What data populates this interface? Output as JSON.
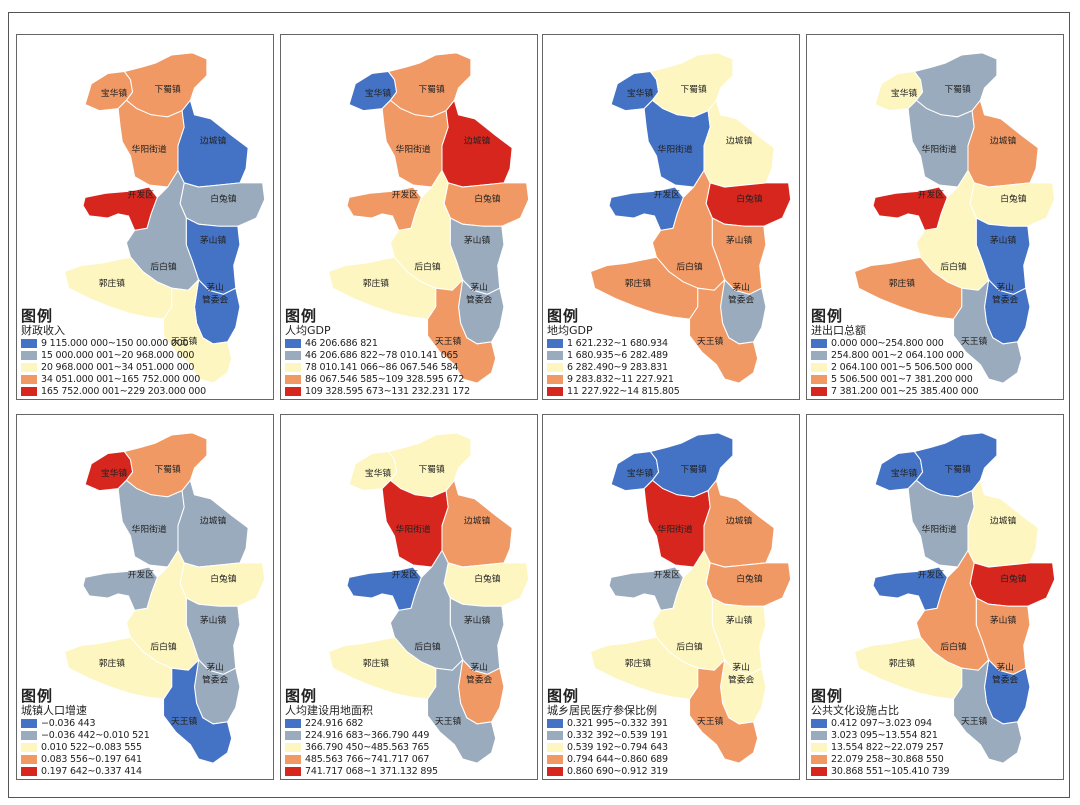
{
  "legend_heading": "图例",
  "towns": {
    "baohua": "宝华镇",
    "xiashu": "下蜀镇",
    "huayang": "华阳街道",
    "biancheng": "边城镇",
    "kaifa": "开发区",
    "baitu": "白兔镇",
    "maoshan": "茅山镇",
    "houbai": "后白镇",
    "guozhuang": "郭庄镇",
    "mscommittee_1": "茅山",
    "mscommittee_2": "管委会",
    "tianwang": "天王镇"
  },
  "colors": {
    "c1": "#4472c4",
    "c2": "#9aabbd",
    "c3": "#fdf6c0",
    "c4": "#f09965",
    "c5": "#d7261e"
  },
  "panels": [
    {
      "subtitle": "财政收入",
      "classes": [
        "9 115.000 000~150 00.000 000",
        "15 000.000 001~20 968.000 000",
        "20 968.000 001~34 051.000 000",
        "34 051.000 001~165 752.000 000",
        "165 752.000 001~229 203.000 000"
      ],
      "fills": {
        "baohua": "c4",
        "xiashu": "c4",
        "huayang": "c4",
        "biancheng": "c1",
        "kaifa": "c5",
        "baitu": "c2",
        "maoshan": "c1",
        "houbai": "c2",
        "guozhuang": "c3",
        "mscommittee": "c1",
        "tianwang": "c3"
      }
    },
    {
      "subtitle": "人均GDP",
      "classes": [
        "46 206.686 821",
        "46 206.686 822~78 010.141 065",
        "78 010.141 066~86 067.546 584",
        "86 067.546 585~109 328.595 672",
        "109 328.595 673~131 232.231 172"
      ],
      "fills": {
        "baohua": "c1",
        "xiashu": "c4",
        "huayang": "c4",
        "biancheng": "c5",
        "kaifa": "c4",
        "baitu": "c4",
        "maoshan": "c2",
        "houbai": "c3",
        "guozhuang": "c3",
        "mscommittee": "c2",
        "tianwang": "c4"
      }
    },
    {
      "subtitle": "地均GDP",
      "classes": [
        "1 621.232~1 680.934",
        "1 680.935~6 282.489",
        "6 282.490~9 283.831",
        "9 283.832~11 227.921",
        "11 227.922~14 815.805"
      ],
      "fills": {
        "baohua": "c1",
        "xiashu": "c3",
        "huayang": "c1",
        "biancheng": "c3",
        "kaifa": "c1",
        "baitu": "c5",
        "maoshan": "c4",
        "houbai": "c4",
        "guozhuang": "c4",
        "mscommittee": "c2",
        "tianwang": "c4"
      }
    },
    {
      "subtitle": "进出口总额",
      "classes": [
        "0.000 000~254.800 000",
        "254.800 001~2 064.100 000",
        "2 064.100 001~5 506.500 000",
        "5 506.500 001~7 381.200 000",
        "7 381.200 001~25 385.400 000"
      ],
      "fills": {
        "baohua": "c3",
        "xiashu": "c2",
        "huayang": "c2",
        "biancheng": "c4",
        "kaifa": "c5",
        "baitu": "c3",
        "maoshan": "c1",
        "houbai": "c3",
        "guozhuang": "c4",
        "mscommittee": "c1",
        "tianwang": "c2"
      }
    },
    {
      "subtitle": "城镇人口增速",
      "classes": [
        "−0.036 443",
        "−0.036 442~0.010 521",
        "0.010 522~0.083 555",
        "0.083 556~0.197 641",
        "0.197 642~0.337 414"
      ],
      "fills": {
        "baohua": "c5",
        "xiashu": "c4",
        "huayang": "c2",
        "biancheng": "c2",
        "kaifa": "c2",
        "baitu": "c3",
        "maoshan": "c2",
        "houbai": "c3",
        "guozhuang": "c3",
        "mscommittee": "c2",
        "tianwang": "c1"
      }
    },
    {
      "subtitle": "人均建设用地面积",
      "classes": [
        "224.916 682",
        "224.916 683~366.790 449",
        "366.790 450~485.563 765",
        "485.563 766~741.717 067",
        "741.717 068~1 371.132 895"
      ],
      "fills": {
        "baohua": "c3",
        "xiashu": "c3",
        "huayang": "c5",
        "biancheng": "c4",
        "kaifa": "c1",
        "baitu": "c3",
        "maoshan": "c2",
        "houbai": "c2",
        "guozhuang": "c3",
        "mscommittee": "c4",
        "tianwang": "c2"
      }
    },
    {
      "subtitle": "城乡居民医疗参保比例",
      "classes": [
        "0.321 995~0.332 391",
        "0.332 392~0.539 191",
        "0.539 192~0.794 643",
        "0.794 644~0.860 689",
        "0.860 690~0.912 319"
      ],
      "fills": {
        "baohua": "c1",
        "xiashu": "c1",
        "huayang": "c5",
        "biancheng": "c4",
        "kaifa": "c2",
        "baitu": "c4",
        "maoshan": "c3",
        "houbai": "c3",
        "guozhuang": "c3",
        "mscommittee": "c3",
        "tianwang": "c4"
      }
    },
    {
      "subtitle": "公共文化设施占比",
      "classes": [
        "0.412 097~3.023 094",
        "3.023 095~13.554 821",
        "13.554 822~22.079 257",
        "22.079 258~30.868 550",
        "30.868 551~105.410 739"
      ],
      "fills": {
        "baohua": "c1",
        "xiashu": "c1",
        "huayang": "c2",
        "biancheng": "c3",
        "kaifa": "c1",
        "baitu": "c5",
        "maoshan": "c4",
        "houbai": "c4",
        "guozhuang": "c3",
        "mscommittee": "c1",
        "tianwang": "c2"
      }
    }
  ]
}
